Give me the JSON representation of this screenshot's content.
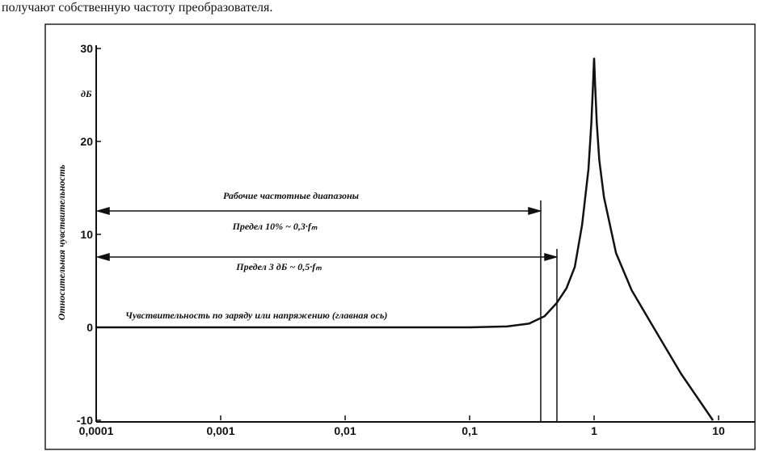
{
  "caption": "получают собственную частоту преобразователя.",
  "chart_data": {
    "type": "line",
    "ylabel": "Относительная чувствительность",
    "unit": "дБ",
    "annotations": [
      "Рабочие частотные диапазоны",
      "Предел 10% ~ 0,3·fₘ",
      "Предел 3 дБ ~ 0,5·fₘ",
      "Чувствительность по заряду или напряжению (главная ось)"
    ],
    "log_x": true,
    "xlim": [
      0.0001,
      10
    ],
    "xticks": [
      {
        "value": 0.0001,
        "label": "0,0001"
      },
      {
        "value": 0.001,
        "label": "0,001"
      },
      {
        "value": 0.01,
        "label": "0,01"
      },
      {
        "value": 0.1,
        "label": "0,1"
      },
      1,
      10
    ],
    "ylim": [
      -10,
      30
    ],
    "yticks": [
      -10,
      0,
      10,
      20,
      30
    ],
    "color": "#111111",
    "x": [
      0.0001,
      0.001,
      0.01,
      0.1,
      0.2,
      0.3,
      0.4,
      0.5,
      0.6,
      0.7,
      0.8,
      0.9,
      0.95,
      0.98,
      1,
      1.02,
      1.05,
      1.1,
      1.2,
      1.5,
      2,
      3,
      5,
      8,
      9
    ],
    "values": [
      0,
      0,
      0,
      0,
      0.1,
      0.4,
      1.2,
      2.6,
      4.2,
      6.5,
      11,
      17,
      22,
      26,
      29,
      26,
      22,
      18,
      14,
      8,
      4,
      0,
      -5,
      -9,
      -10
    ]
  }
}
